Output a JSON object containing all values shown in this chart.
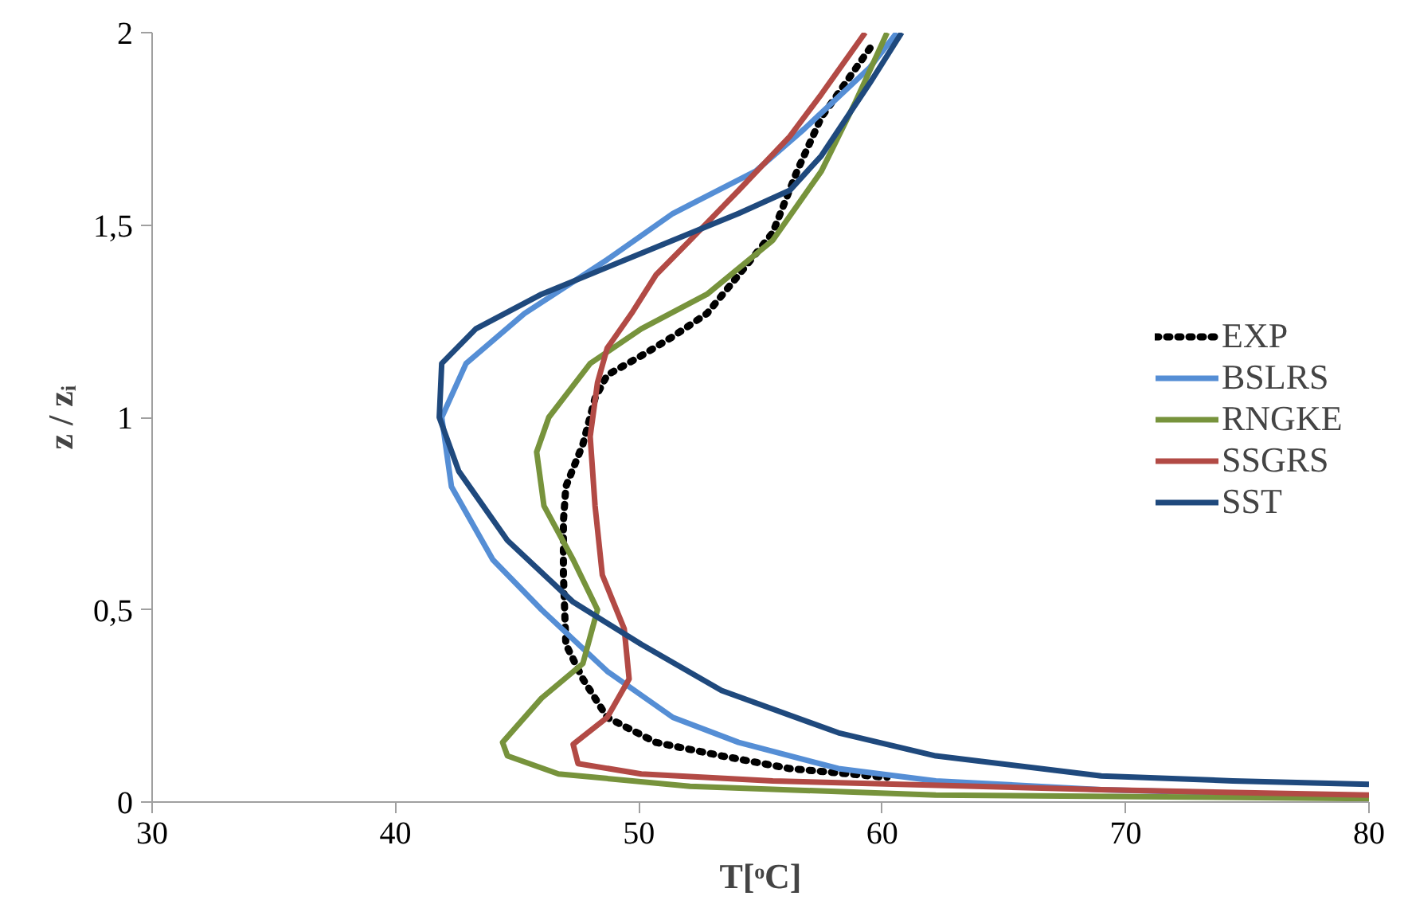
{
  "chart_data": {
    "type": "line",
    "xlabel": "T[ᵒC]",
    "ylabel": "z / zᵢ",
    "xlim": [
      30,
      80
    ],
    "xticks": [
      30,
      40,
      50,
      60,
      70,
      80
    ],
    "ylim": [
      0,
      2
    ],
    "yticks": [
      0,
      {
        "value": 0.5,
        "label": "0,5"
      },
      1,
      {
        "value": 1.5,
        "label": "1,5"
      },
      2
    ],
    "grid": false,
    "legend": "right",
    "marker": "none",
    "series": [
      {
        "name": "EXP",
        "color": "#000000",
        "line_style": "dotted",
        "x": [
          59.5,
          58.5,
          57.5,
          56.5,
          55.5,
          54.1,
          52.8,
          51.4,
          50.1,
          48.7,
          48.2,
          47.7,
          47.0,
          46.9,
          46.9,
          47.0,
          47.7,
          48.7,
          50.7,
          53.4,
          56.2,
          60.2
        ],
        "values": [
          1.96,
          1.87,
          1.78,
          1.64,
          1.48,
          1.37,
          1.27,
          1.21,
          1.16,
          1.11,
          1.05,
          0.93,
          0.82,
          0.73,
          0.59,
          0.41,
          0.32,
          0.22,
          0.155,
          0.12,
          0.087,
          0.064
        ]
      },
      {
        "name": "BSLRS",
        "color": "#558ed5",
        "x": [
          60.6,
          59.5,
          56.8,
          54.8,
          51.4,
          48.7,
          45.3,
          42.9,
          41.9,
          42.3,
          44.0,
          46.0,
          48.7,
          51.4,
          54.1,
          58.2,
          62.2,
          69.0,
          80
        ],
        "values": [
          2,
          1.91,
          1.75,
          1.64,
          1.53,
          1.41,
          1.27,
          1.14,
          1.0,
          0.82,
          0.63,
          0.5,
          0.34,
          0.22,
          0.155,
          0.087,
          0.055,
          0.032,
          0.014
        ]
      },
      {
        "name": "RNGKE",
        "color": "#77933c",
        "x": [
          60.2,
          58.9,
          57.5,
          55.5,
          52.8,
          50.1,
          48.0,
          46.3,
          45.8,
          46.1,
          47.3,
          48.3,
          47.7,
          46.0,
          44.4,
          44.6,
          46.7,
          52.1,
          62.2,
          80
        ],
        "values": [
          2,
          1.82,
          1.64,
          1.46,
          1.32,
          1.23,
          1.14,
          1.0,
          0.91,
          0.77,
          0.63,
          0.5,
          0.36,
          0.27,
          0.155,
          0.12,
          0.073,
          0.041,
          0.018,
          0.009
        ]
      },
      {
        "name": "SSGRS",
        "color": "#b24a45",
        "x": [
          59.3,
          57.5,
          56.2,
          54.1,
          52.1,
          50.7,
          49.7,
          48.7,
          48.3,
          48.0,
          48.2,
          48.5,
          49.4,
          49.6,
          48.7,
          47.3,
          47.5,
          50.1,
          55.5,
          69.0,
          80
        ],
        "values": [
          2,
          1.84,
          1.73,
          1.59,
          1.46,
          1.37,
          1.27,
          1.18,
          1.09,
          0.95,
          0.77,
          0.59,
          0.45,
          0.32,
          0.22,
          0.15,
          0.1,
          0.073,
          0.055,
          0.032,
          0.018
        ]
      },
      {
        "name": "SST",
        "color": "#1f497d",
        "x": [
          60.8,
          59.5,
          57.5,
          56.2,
          54.1,
          51.4,
          48.7,
          46.0,
          43.3,
          41.9,
          41.8,
          42.6,
          44.6,
          47.3,
          50.1,
          53.4,
          58.2,
          62.2,
          69.0,
          74.4,
          80
        ],
        "values": [
          2,
          1.87,
          1.68,
          1.59,
          1.53,
          1.46,
          1.39,
          1.32,
          1.23,
          1.14,
          1.0,
          0.86,
          0.68,
          0.52,
          0.41,
          0.29,
          0.18,
          0.12,
          0.068,
          0.055,
          0.046
        ]
      }
    ]
  }
}
